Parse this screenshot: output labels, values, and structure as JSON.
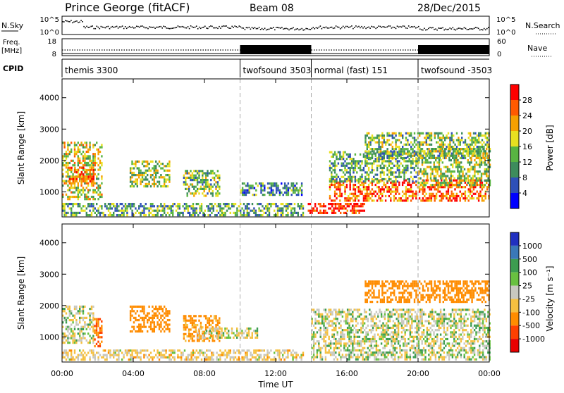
{
  "header": {
    "station": "Prince George (fitACF)",
    "beam": "Beam 08",
    "date": "28/Dec/2015"
  },
  "nsky_panel": {
    "left_label": "N.Sky",
    "right_label": "N.Search",
    "left_ticks": [
      "10^5",
      "10^0"
    ],
    "right_ticks": [
      "10^5",
      "10^0"
    ]
  },
  "freq_panel": {
    "left_label_1": "Freq.",
    "left_label_2": "[MHz]",
    "left_ticks": [
      "18",
      "8"
    ],
    "right_label": "Nave",
    "right_ticks": [
      "60",
      "0"
    ]
  },
  "cpid_panel": {
    "label": "CPID",
    "segments": [
      {
        "name": "themis 3300",
        "start_hour": 0,
        "end_hour": 10
      },
      {
        "name": "twofsound 3503",
        "start_hour": 10,
        "end_hour": 14
      },
      {
        "name": "normal (fast) 151",
        "start_hour": 14,
        "end_hour": 20
      },
      {
        "name": "twofsound -3503",
        "start_hour": 20,
        "end_hour": 24
      }
    ]
  },
  "chart_data": [
    {
      "type": "heatmap",
      "name": "power",
      "ylabel": "Slant Range [km]",
      "y_ticks": [
        "1000",
        "2000",
        "3000",
        "4000"
      ],
      "ylim": [
        200,
        4600
      ],
      "xlim": [
        0,
        24
      ],
      "colorbar_label": "Power [dB]",
      "colorbar_ticks": [
        "4",
        "8",
        "12",
        "16",
        "20",
        "24",
        "28"
      ],
      "colorbar_range": [
        0,
        32
      ],
      "colors": [
        "#0000ff",
        "#2e50b8",
        "#3d8c5c",
        "#58b442",
        "#e8e020",
        "#f5a000",
        "#ff5a00",
        "#ff0000"
      ],
      "regions": [
        {
          "t0": 0.0,
          "t1": 2.2,
          "r0": 800,
          "r1": 2600,
          "level": 18
        },
        {
          "t0": 0.3,
          "t1": 1.8,
          "r0": 1300,
          "r1": 1800,
          "level": 26
        },
        {
          "t0": 3.8,
          "t1": 6.0,
          "r0": 1200,
          "r1": 2000,
          "level": 16
        },
        {
          "t0": 6.8,
          "t1": 8.8,
          "r0": 900,
          "r1": 1700,
          "level": 14
        },
        {
          "t0": 10.0,
          "t1": 13.5,
          "r0": 900,
          "r1": 1300,
          "level": 10
        },
        {
          "t0": 0.0,
          "t1": 13.5,
          "r0": 250,
          "r1": 650,
          "level": 12
        },
        {
          "t0": 13.8,
          "t1": 17.0,
          "r0": 350,
          "r1": 650,
          "level": 30
        },
        {
          "t0": 15.0,
          "t1": 24.0,
          "r0": 700,
          "r1": 1400,
          "level": 26
        },
        {
          "t0": 15.0,
          "t1": 20.0,
          "r0": 1300,
          "r1": 2300,
          "level": 12
        },
        {
          "t0": 17.0,
          "t1": 24.0,
          "r0": 2100,
          "r1": 2900,
          "level": 14
        },
        {
          "t0": 20.0,
          "t1": 24.0,
          "r0": 1200,
          "r1": 2400,
          "level": 16
        }
      ]
    },
    {
      "type": "heatmap",
      "name": "velocity",
      "ylabel": "Slant Range [km]",
      "y_ticks": [
        "1000",
        "2000",
        "3000",
        "4000"
      ],
      "ylim": [
        200,
        4600
      ],
      "xlim": [
        0,
        24
      ],
      "colorbar_label": "Velocity [m s⁻¹]",
      "colorbar_ticks": [
        "1000",
        "500",
        "100",
        "25",
        "-25",
        "-100",
        "-500",
        "-1000"
      ],
      "colors": [
        "#2030c0",
        "#3a78b8",
        "#3c9c50",
        "#68c040",
        "#c8c8c0",
        "#f5c040",
        "#ff8c00",
        "#ff4000",
        "#e80000"
      ],
      "regions": [
        {
          "t0": 0.0,
          "t1": 1.8,
          "r0": 800,
          "r1": 2000,
          "v": 0
        },
        {
          "t0": 1.8,
          "t1": 2.2,
          "r0": 700,
          "r1": 1600,
          "v": -300
        },
        {
          "t0": 3.8,
          "t1": 6.0,
          "r0": 1200,
          "r1": 2000,
          "v": -200
        },
        {
          "t0": 6.8,
          "t1": 8.8,
          "r0": 900,
          "r1": 1700,
          "v": -150
        },
        {
          "t0": 7.5,
          "t1": 11.0,
          "r0": 1000,
          "r1": 1300,
          "v": 0
        },
        {
          "t0": 0.0,
          "t1": 13.5,
          "r0": 250,
          "r1": 600,
          "v": -40
        },
        {
          "t0": 14.0,
          "t1": 24.0,
          "r0": 300,
          "r1": 1900,
          "v": 0
        },
        {
          "t0": 17.0,
          "t1": 24.0,
          "r0": 2100,
          "r1": 2800,
          "v": -200
        }
      ]
    }
  ],
  "x_axis": {
    "label": "Time UT",
    "ticks": [
      "00:00",
      "04:00",
      "08:00",
      "12:00",
      "16:00",
      "20:00",
      "00:00"
    ],
    "tick_hours": [
      0,
      4,
      8,
      12,
      16,
      20,
      24
    ]
  }
}
